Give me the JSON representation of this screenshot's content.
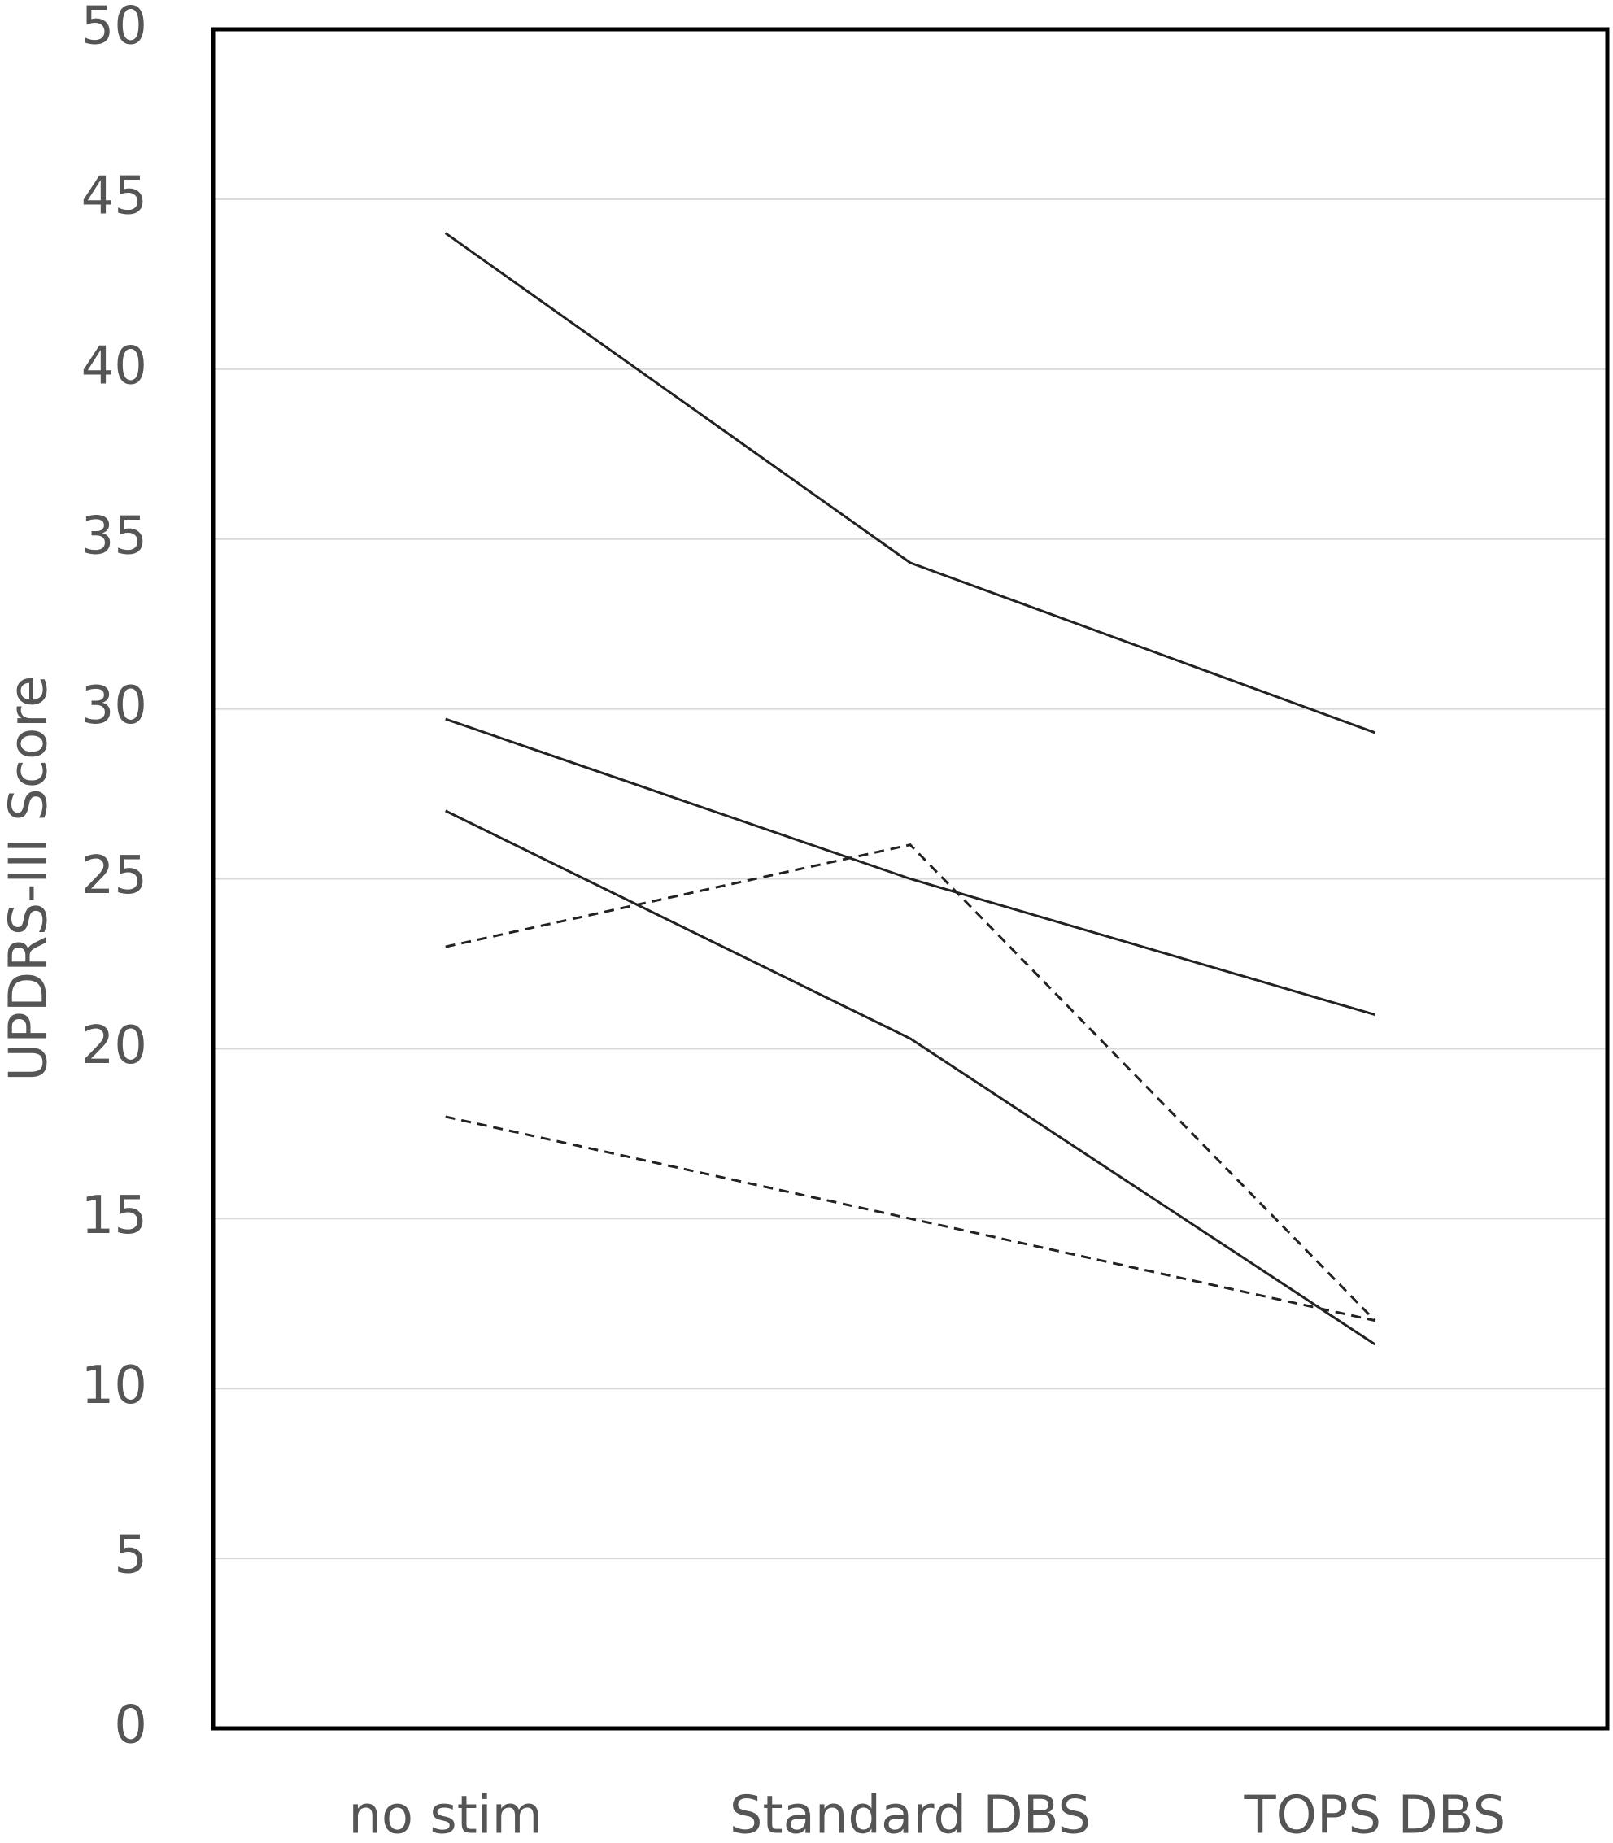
{
  "chart_data": {
    "type": "line",
    "y_label": "UPDRS-III Score",
    "categories": [
      "no stim",
      "Standard DBS",
      "TOPS DBS"
    ],
    "series": [
      {
        "color": "#222222",
        "dashed": false,
        "values": [
          44,
          34.3,
          29.3
        ]
      },
      {
        "color": "#222222",
        "dashed": false,
        "values": [
          29.7,
          25,
          21
        ]
      },
      {
        "color": "#222222",
        "dashed": false,
        "values": [
          27,
          20.3,
          11.3
        ]
      },
      {
        "color": "#222222",
        "dashed": true,
        "values": [
          23,
          26,
          12
        ]
      },
      {
        "color": "#222222",
        "dashed": true,
        "values": [
          18,
          15,
          12
        ]
      }
    ],
    "ylim": [
      0,
      50
    ],
    "yticks": [
      0,
      5,
      10,
      15,
      20,
      25,
      30,
      35,
      40,
      45,
      50
    ],
    "grid": true
  }
}
